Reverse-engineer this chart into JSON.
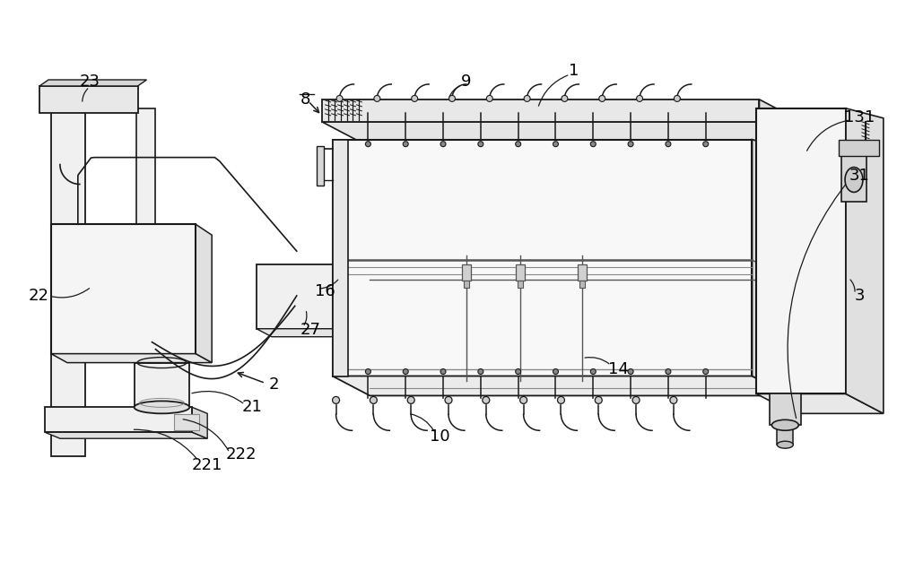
{
  "bg_color": "#ffffff",
  "lc": "#1a1a1a",
  "lc_gray": "#555555",
  "lc_lightgray": "#888888",
  "fig_width": 10.0,
  "fig_height": 6.27,
  "dpi": 100,
  "label_fs": 13,
  "label_color": "#000000"
}
